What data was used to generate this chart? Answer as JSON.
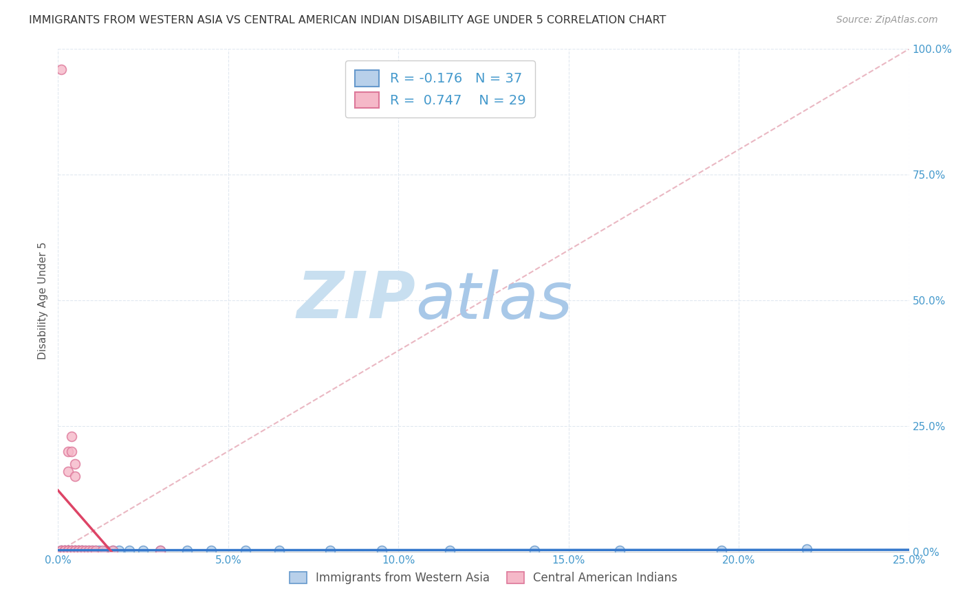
{
  "title": "IMMIGRANTS FROM WESTERN ASIA VS CENTRAL AMERICAN INDIAN DISABILITY AGE UNDER 5 CORRELATION CHART",
  "source": "Source: ZipAtlas.com",
  "xlabel_bottom": "Immigrants from Western Asia",
  "ylabel": "Disability Age Under 5",
  "xlim": [
    0.0,
    0.25
  ],
  "ylim": [
    0.0,
    1.0
  ],
  "xticks": [
    0.0,
    0.05,
    0.1,
    0.15,
    0.2,
    0.25
  ],
  "yticks": [
    0.0,
    0.25,
    0.5,
    0.75,
    1.0
  ],
  "xtick_labels": [
    "0.0%",
    "5.0%",
    "10.0%",
    "15.0%",
    "20.0%",
    "25.0%"
  ],
  "ytick_labels": [
    "0.0%",
    "25.0%",
    "50.0%",
    "75.0%",
    "100.0%"
  ],
  "blue_R": -0.176,
  "blue_N": 37,
  "pink_R": 0.747,
  "pink_N": 29,
  "blue_color": "#b8d0ea",
  "pink_color": "#f5b8c8",
  "blue_edge_color": "#6699cc",
  "pink_edge_color": "#dd7799",
  "blue_line_color": "#3377cc",
  "pink_line_color": "#dd4466",
  "ref_line_color": "#e8b0bc",
  "watermark_zip_color": "#c8dff0",
  "watermark_atlas_color": "#a8c8e8",
  "title_color": "#333333",
  "axis_color": "#4499cc",
  "grid_color": "#e0e8f0",
  "blue_scatter_x": [
    0.001,
    0.001,
    0.002,
    0.002,
    0.003,
    0.003,
    0.003,
    0.004,
    0.004,
    0.005,
    0.005,
    0.006,
    0.006,
    0.007,
    0.007,
    0.008,
    0.009,
    0.01,
    0.011,
    0.012,
    0.014,
    0.016,
    0.018,
    0.021,
    0.025,
    0.03,
    0.038,
    0.045,
    0.055,
    0.065,
    0.08,
    0.095,
    0.115,
    0.14,
    0.165,
    0.195,
    0.22
  ],
  "blue_scatter_y": [
    0.003,
    0.003,
    0.003,
    0.003,
    0.003,
    0.003,
    0.003,
    0.003,
    0.003,
    0.003,
    0.003,
    0.003,
    0.003,
    0.003,
    0.003,
    0.003,
    0.003,
    0.003,
    0.003,
    0.003,
    0.003,
    0.003,
    0.003,
    0.003,
    0.003,
    0.003,
    0.003,
    0.003,
    0.003,
    0.003,
    0.003,
    0.003,
    0.003,
    0.003,
    0.003,
    0.003,
    0.005
  ],
  "pink_scatter_x": [
    0.001,
    0.001,
    0.001,
    0.002,
    0.002,
    0.002,
    0.003,
    0.003,
    0.003,
    0.003,
    0.004,
    0.004,
    0.004,
    0.004,
    0.005,
    0.005,
    0.005,
    0.005,
    0.006,
    0.006,
    0.007,
    0.007,
    0.008,
    0.009,
    0.01,
    0.011,
    0.013,
    0.016,
    0.03
  ],
  "pink_scatter_y": [
    0.003,
    0.003,
    0.96,
    0.003,
    0.003,
    0.003,
    0.003,
    0.003,
    0.16,
    0.2,
    0.003,
    0.003,
    0.2,
    0.23,
    0.003,
    0.003,
    0.15,
    0.175,
    0.003,
    0.003,
    0.003,
    0.003,
    0.003,
    0.003,
    0.003,
    0.003,
    0.003,
    0.003,
    0.003
  ]
}
